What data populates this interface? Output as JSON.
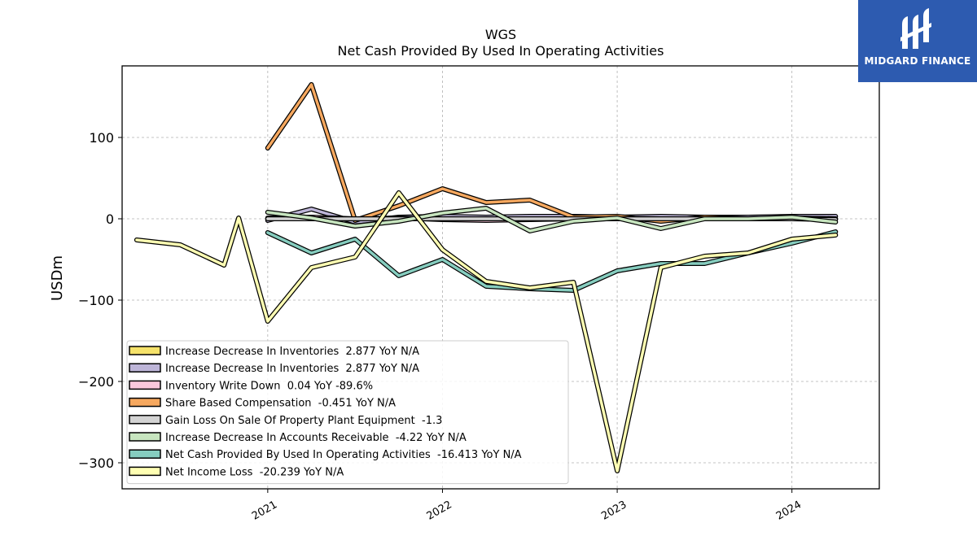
{
  "brand": {
    "name": "MIDGARD FINANCE",
    "bg_color": "#2d5bb0"
  },
  "chart_data": {
    "type": "line",
    "title": "WGS",
    "subtitle": "Net Cash Provided By Used In Operating Activities",
    "xlabel": "",
    "ylabel": "USDm",
    "x_ticks": [
      "2021",
      "2022",
      "2023",
      "2024"
    ],
    "y_ticks": [
      100,
      0,
      -100,
      -200,
      -300
    ],
    "y_tick_labels": [
      "100",
      "0",
      "−100",
      "−200",
      "−300"
    ],
    "xlim": [
      "2020-03",
      "2024-07"
    ],
    "ylim": [
      -332,
      188
    ],
    "grid": true,
    "legend_position": "lower-left",
    "series": [
      {
        "name": "Increase Decrease In Inventories  2.877 YoY N/A",
        "color": "#f5e26a",
        "legend_only": true,
        "x": [],
        "y": []
      },
      {
        "name": "Increase Decrease In Inventories  2.877 YoY N/A",
        "color": "#bdb5d8",
        "x": [
          "2021-01",
          "2021-04",
          "2021-07",
          "2021-10",
          "2022-01",
          "2022-04",
          "2022-07",
          "2022-10",
          "2023-01",
          "2023-04",
          "2023-07",
          "2023-10",
          "2024-01",
          "2024-04"
        ],
        "y": [
          -2,
          12,
          -4,
          2,
          3,
          2,
          3,
          3,
          2,
          3,
          2,
          2,
          3,
          3
        ]
      },
      {
        "name": "Inventory Write Down  0.04 YoY -89.6%",
        "color": "#f9c8dc",
        "x": [
          "2021-01",
          "2021-04",
          "2021-07",
          "2021-10",
          "2022-01",
          "2022-04",
          "2022-07",
          "2022-10",
          "2023-01",
          "2023-04",
          "2023-07",
          "2023-10",
          "2024-01",
          "2024-04"
        ],
        "y": [
          1,
          2,
          0,
          1,
          -1,
          -2,
          -1,
          0,
          1,
          0,
          0,
          0,
          1,
          0
        ]
      },
      {
        "name": "Share Based Compensation  -0.451 YoY N/A",
        "color": "#f6a85f",
        "x": [
          "2021-01",
          "2021-04",
          "2021-07",
          "2021-10",
          "2022-01",
          "2022-04",
          "2022-07",
          "2022-10",
          "2023-01",
          "2023-04",
          "2023-07",
          "2023-10",
          "2024-01",
          "2024-04"
        ],
        "y": [
          87,
          165,
          -2,
          16,
          37,
          20,
          23,
          2,
          3,
          -3,
          2,
          0,
          1,
          0
        ]
      },
      {
        "name": "Gain Loss On Sale Of Property Plant Equipment  -1.3",
        "color": "#d3d3d3",
        "x": [
          "2021-01",
          "2021-04",
          "2021-07",
          "2021-10",
          "2022-01",
          "2022-04",
          "2022-07",
          "2022-10",
          "2023-01",
          "2023-04",
          "2023-07",
          "2023-10",
          "2024-01",
          "2024-04"
        ],
        "y": [
          0,
          0,
          0,
          0,
          0,
          0,
          0,
          0,
          0,
          0,
          0,
          0,
          0,
          -1
        ]
      },
      {
        "name": "Increase Decrease In Accounts Receivable  -4.22 YoY N/A",
        "color": "#c7e5bf",
        "x": [
          "2021-01",
          "2021-04",
          "2021-07",
          "2021-10",
          "2022-01",
          "2022-04",
          "2022-07",
          "2022-10",
          "2023-01",
          "2023-04",
          "2023-07",
          "2023-10",
          "2024-01",
          "2024-04"
        ],
        "y": [
          8,
          1,
          -9,
          -3,
          7,
          13,
          -15,
          -3,
          1,
          -12,
          0,
          0,
          2,
          -4
        ]
      },
      {
        "name": "Net Cash Provided By Used In Operating Activities  -16.413 YoY N/A",
        "color": "#86cdbf",
        "x": [
          "2021-01",
          "2021-04",
          "2021-07",
          "2021-10",
          "2022-01",
          "2022-04",
          "2022-07",
          "2022-10",
          "2023-01",
          "2023-04",
          "2023-07",
          "2023-10",
          "2024-01",
          "2024-04"
        ],
        "y": [
          -17,
          -42,
          -25,
          -70,
          -50,
          -83,
          -86,
          -88,
          -64,
          -55,
          -55,
          -42,
          -30,
          -16
        ]
      },
      {
        "name": "Net Income Loss  -20.239 YoY N/A",
        "color": "#ffffb3",
        "x": [
          "2020-04",
          "2020-07",
          "2020-10",
          "2020-11",
          "2021-01",
          "2021-04",
          "2021-07",
          "2021-10",
          "2022-01",
          "2022-04",
          "2022-07",
          "2022-10",
          "2023-01",
          "2023-04",
          "2023-07",
          "2023-10",
          "2024-01",
          "2024-04"
        ],
        "y": [
          -26,
          -32,
          -57,
          1,
          -126,
          -60,
          -47,
          32,
          -38,
          -77,
          -85,
          -78,
          -310,
          -60,
          -46,
          -42,
          -25,
          -20
        ]
      }
    ]
  }
}
